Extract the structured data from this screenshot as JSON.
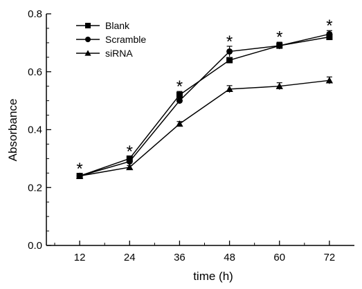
{
  "chart_data": {
    "type": "line",
    "title": "",
    "xlabel": "time (h)",
    "ylabel": "Absorbance",
    "x": [
      12,
      24,
      36,
      48,
      60,
      72
    ],
    "x_ticks": [
      "12",
      "24",
      "36",
      "48",
      "60",
      "72"
    ],
    "xlim": [
      4,
      78
    ],
    "ylim": [
      0.0,
      0.8
    ],
    "y_ticks": [
      "0.0",
      "0.2",
      "0.4",
      "0.6",
      "0.8"
    ],
    "y_tick_values": [
      0.0,
      0.2,
      0.4,
      0.6,
      0.8
    ],
    "grid": false,
    "legend_position": "top-left",
    "series": [
      {
        "name": "Blank",
        "marker": "square",
        "values": [
          0.24,
          0.3,
          0.52,
          0.64,
          0.69,
          0.72
        ],
        "errors": [
          0.005,
          0.006,
          0.012,
          0.006,
          0.01,
          0.008
        ]
      },
      {
        "name": "Scramble",
        "marker": "circle",
        "values": [
          0.24,
          0.29,
          0.5,
          0.67,
          0.69,
          0.73
        ],
        "errors": [
          0.005,
          0.006,
          0.01,
          0.018,
          0.012,
          0.012
        ]
      },
      {
        "name": "siRNA",
        "marker": "triangle",
        "values": [
          0.24,
          0.27,
          0.42,
          0.54,
          0.55,
          0.57
        ],
        "errors": [
          0.005,
          0.006,
          0.008,
          0.012,
          0.012,
          0.012
        ]
      }
    ],
    "annotations": [
      {
        "x": 12,
        "y": 0.255,
        "text": "*"
      },
      {
        "x": 24,
        "y": 0.315,
        "text": "*"
      },
      {
        "x": 36,
        "y": 0.54,
        "text": "*"
      },
      {
        "x": 48,
        "y": 0.695,
        "text": "*"
      },
      {
        "x": 60,
        "y": 0.71,
        "text": "*"
      },
      {
        "x": 72,
        "y": 0.75,
        "text": "*"
      }
    ]
  }
}
